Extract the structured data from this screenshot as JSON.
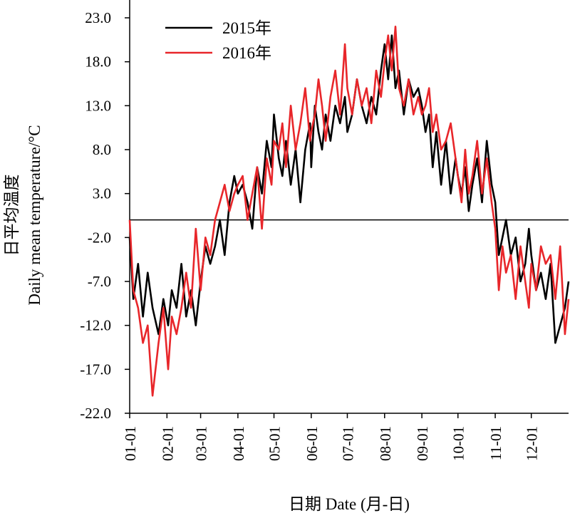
{
  "chart_data": {
    "type": "line",
    "title": "",
    "xlabel": "日期 Date (月-日)",
    "ylabel_cn": "日平均温度",
    "ylabel_en": "Daily mean temperature/°C",
    "xlim": [
      1,
      366
    ],
    "ylim": [
      -22.0,
      23.0
    ],
    "grid": false,
    "zero_line": true,
    "legend_position": "top-left",
    "x_ticks": [
      {
        "label": "01-01",
        "day": 1
      },
      {
        "label": "02-01",
        "day": 32
      },
      {
        "label": "03-01",
        "day": 60
      },
      {
        "label": "04-01",
        "day": 91
      },
      {
        "label": "05-01",
        "day": 121
      },
      {
        "label": "06-01",
        "day": 152
      },
      {
        "label": "07-01",
        "day": 182
      },
      {
        "label": "08-01",
        "day": 213
      },
      {
        "label": "09-01",
        "day": 244
      },
      {
        "label": "10-01",
        "day": 274
      },
      {
        "label": "11-01",
        "day": 305
      },
      {
        "label": "12-01",
        "day": 335
      }
    ],
    "y_ticks": [
      "23.0",
      "18.0",
      "13.0",
      "8.0",
      "3.0",
      "-2.0",
      "-7.0",
      "-12.0",
      "-17.0",
      "-22.0"
    ],
    "series": [
      {
        "name": "2015年",
        "color": "#000000",
        "x": [
          1,
          4,
          8,
          12,
          16,
          20,
          25,
          29,
          33,
          36,
          40,
          44,
          48,
          52,
          56,
          60,
          64,
          68,
          72,
          76,
          80,
          84,
          88,
          91,
          95,
          99,
          103,
          107,
          111,
          115,
          119,
          121,
          125,
          128,
          131,
          135,
          139,
          143,
          147,
          151,
          152,
          155,
          158,
          161,
          164,
          168,
          172,
          176,
          180,
          182,
          186,
          190,
          194,
          198,
          202,
          206,
          210,
          213,
          216,
          219,
          222,
          225,
          229,
          233,
          237,
          241,
          244,
          247,
          250,
          253,
          256,
          260,
          264,
          268,
          272,
          274,
          277,
          280,
          283,
          286,
          290,
          294,
          298,
          302,
          305,
          308,
          311,
          314,
          318,
          322,
          326,
          330,
          333,
          335,
          339,
          343,
          347,
          351,
          355,
          359,
          363,
          366
        ],
        "values": [
          -2,
          -9,
          -5,
          -11,
          -6,
          -10,
          -13,
          -9,
          -12,
          -8,
          -10,
          -5,
          -11,
          -8,
          -12,
          -7,
          -3,
          -5,
          -3,
          0,
          -4,
          2,
          5,
          3,
          4,
          2,
          -1,
          6,
          3,
          9,
          6,
          12,
          7,
          5,
          9,
          4,
          8,
          2,
          8,
          11,
          6,
          13,
          10,
          8,
          12,
          9,
          13,
          11,
          14,
          10,
          12,
          16,
          13,
          11,
          14,
          12,
          17,
          20,
          16,
          21,
          15,
          17,
          12,
          16,
          14,
          15,
          13,
          10,
          12,
          6,
          10,
          4,
          9,
          3,
          7,
          5,
          3,
          6,
          1,
          4,
          7,
          2,
          9,
          4,
          2,
          -4,
          -2,
          0,
          -4,
          -2,
          -7,
          -5,
          -1,
          -4,
          -8,
          -6,
          -9,
          -5,
          -14,
          -12,
          -10,
          -7
        ]
      },
      {
        "name": "2016年",
        "color": "#e8262a",
        "x": [
          1,
          4,
          8,
          12,
          16,
          20,
          25,
          29,
          33,
          36,
          40,
          44,
          48,
          52,
          56,
          60,
          64,
          68,
          72,
          76,
          80,
          84,
          88,
          91,
          95,
          99,
          103,
          107,
          111,
          115,
          119,
          121,
          125,
          128,
          131,
          135,
          139,
          143,
          147,
          151,
          152,
          155,
          158,
          161,
          164,
          168,
          172,
          176,
          180,
          182,
          186,
          190,
          194,
          198,
          202,
          206,
          210,
          213,
          216,
          219,
          222,
          225,
          229,
          233,
          237,
          241,
          244,
          247,
          250,
          253,
          256,
          260,
          264,
          268,
          272,
          274,
          277,
          280,
          283,
          286,
          290,
          294,
          298,
          302,
          305,
          308,
          311,
          314,
          318,
          322,
          326,
          330,
          333,
          335,
          339,
          343,
          347,
          351,
          355,
          359,
          363,
          366
        ],
        "values": [
          0,
          -8,
          -10,
          -14,
          -12,
          -20,
          -14,
          -10,
          -17,
          -11,
          -13,
          -10,
          -6,
          -10,
          -1,
          -8,
          -2,
          -4,
          0,
          2,
          4,
          1,
          3,
          4,
          5,
          0,
          3,
          6,
          -1,
          7,
          4,
          9,
          8,
          11,
          6,
          13,
          8,
          11,
          15,
          9,
          10,
          12,
          16,
          13,
          9,
          14,
          17,
          12,
          20,
          15,
          12,
          16,
          13,
          15,
          11,
          17,
          14,
          18,
          21,
          17,
          22,
          15,
          13,
          16,
          12,
          14,
          12,
          13,
          15,
          10,
          12,
          8,
          9,
          11,
          7,
          5,
          2,
          8,
          3,
          5,
          9,
          3,
          7,
          2,
          -1,
          -8,
          -3,
          -6,
          -4,
          -9,
          -3,
          -7,
          -10,
          -5,
          -8,
          -3,
          -5,
          -4,
          -9,
          -3,
          -13,
          -9
        ]
      }
    ]
  }
}
